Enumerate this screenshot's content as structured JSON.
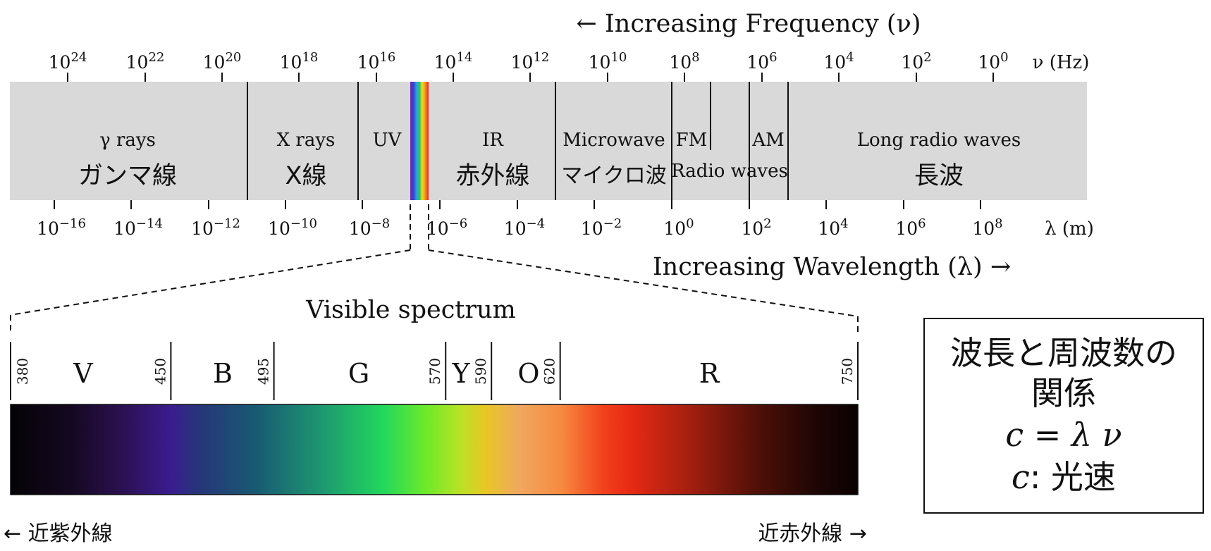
{
  "freq_axis": {
    "arrow_label": "← Increasing Frequency (ν)",
    "unit": "ν (Hz)",
    "ticks": [
      {
        "base": "10",
        "exp": "24"
      },
      {
        "base": "10",
        "exp": "22"
      },
      {
        "base": "10",
        "exp": "20"
      },
      {
        "base": "10",
        "exp": "18"
      },
      {
        "base": "10",
        "exp": "16"
      },
      {
        "base": "10",
        "exp": "14"
      },
      {
        "base": "10",
        "exp": "12"
      },
      {
        "base": "10",
        "exp": "10"
      },
      {
        "base": "10",
        "exp": "8"
      },
      {
        "base": "10",
        "exp": "6"
      },
      {
        "base": "10",
        "exp": "4"
      },
      {
        "base": "10",
        "exp": "2"
      },
      {
        "base": "10",
        "exp": "0"
      }
    ]
  },
  "wave_axis": {
    "arrow_label": "Increasing Wavelength (λ) →",
    "unit": "λ (m)",
    "ticks": [
      {
        "base": "10",
        "exp": "−16"
      },
      {
        "base": "10",
        "exp": "−14"
      },
      {
        "base": "10",
        "exp": "−12"
      },
      {
        "base": "10",
        "exp": "−10"
      },
      {
        "base": "10",
        "exp": "−8"
      },
      {
        "base": "10",
        "exp": "−6"
      },
      {
        "base": "10",
        "exp": "−4"
      },
      {
        "base": "10",
        "exp": "−2"
      },
      {
        "base": "10",
        "exp": "0"
      },
      {
        "base": "10",
        "exp": "2"
      },
      {
        "base": "10",
        "exp": "4"
      },
      {
        "base": "10",
        "exp": "6"
      },
      {
        "base": "10",
        "exp": "8"
      }
    ]
  },
  "bands": {
    "gamma": {
      "en": "γ rays",
      "jp": "ガンマ線"
    },
    "xray": {
      "en": "X rays",
      "jp": "X線"
    },
    "uv": {
      "en": "UV"
    },
    "ir": {
      "en": "IR",
      "jp": "赤外線"
    },
    "microwave": {
      "en": "Microwave",
      "jp": "マイクロ波"
    },
    "fm": {
      "en": "FM"
    },
    "am": {
      "en": "AM"
    },
    "radio": {
      "en": "Radio waves"
    },
    "long": {
      "en": "Long radio waves",
      "jp": "長波"
    }
  },
  "visible": {
    "title": "Visible spectrum",
    "boundaries": [
      "380",
      "450",
      "495",
      "570",
      "590",
      "620",
      "750"
    ],
    "colors": [
      "V",
      "B",
      "G",
      "Y",
      "O",
      "R"
    ],
    "left_note": "← 近紫外線",
    "right_note": "近赤外線 →"
  },
  "relation_box": {
    "line1": "波長と周波数の",
    "line2": "関係",
    "formula": "c = λ ν",
    "note_var": "c",
    "note_text": ": 光速"
  },
  "colors": {
    "band_fill": "#d9d9d9",
    "ink": "#111111"
  }
}
